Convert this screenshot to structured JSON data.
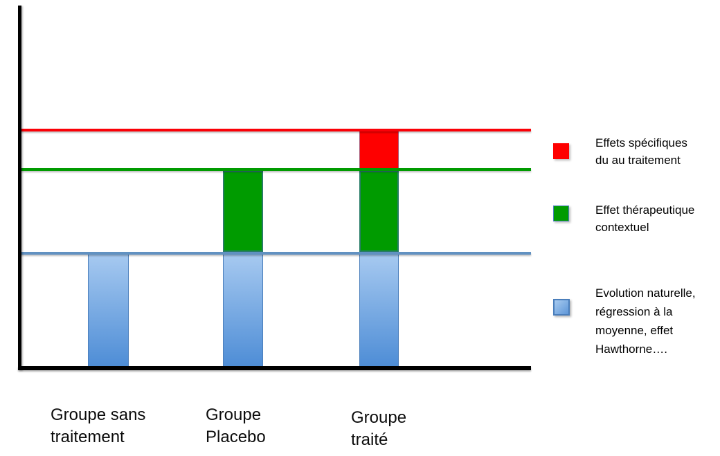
{
  "chart_data": {
    "type": "bar",
    "stacked": true,
    "title": "",
    "xlabel": "",
    "ylabel": "",
    "categories": [
      "Groupe sans traitement",
      "Groupe Placebo",
      "Groupe traité"
    ],
    "series": [
      {
        "name": "Evolution naturelle, régression à la moyenne, effet Hawthorne….",
        "color": "#5f90c0",
        "fill": "gradient #a6c9f0 to #4e8dd6",
        "values": [
          1.0,
          1.0,
          1.0
        ]
      },
      {
        "name": "Effet thérapeutique contextuel",
        "color": "#009b00",
        "values": [
          0,
          0.72,
          0.72
        ]
      },
      {
        "name": "Effets spécifiques du au traitement",
        "color": "#fe0000",
        "values": [
          0,
          0,
          0.33
        ]
      }
    ],
    "reference_lines": [
      {
        "level": 2.05,
        "color": "#fb0007",
        "matches": "sommet barre groupe traité"
      },
      {
        "level": 1.72,
        "color": "#009b00",
        "matches": "sommet barre groupe placebo"
      },
      {
        "level": 1.0,
        "color": "#6191c1",
        "matches": "sommet barre groupe sans traitement"
      }
    ],
    "y_axis": {
      "unit": "relative (ligne bleue = 1)",
      "ticks": "none",
      "ylim": [
        0,
        3.2
      ]
    },
    "x_axis": {
      "ticks": "none"
    },
    "grid": false,
    "legend_position": "right",
    "axis_color": "#000000",
    "background": "#ffffff"
  },
  "x_labels": [
    {
      "line1": "Groupe sans",
      "line2": "traitement"
    },
    {
      "line1": "Groupe",
      "line2": "Placebo"
    },
    {
      "line1": "Groupe",
      "line2": "traité"
    }
  ],
  "legend": {
    "items": [
      {
        "color": "#fe0000",
        "lines": [
          "Effets spécifiques",
          "du au traitement"
        ]
      },
      {
        "color": "#009b00",
        "lines": [
          "Effet thérapeutique",
          "contextuel"
        ]
      },
      {
        "color": "#5f90c0",
        "lines": [
          "Evolution naturelle,",
          "régression à la",
          "moyenne, effet",
          "Hawthorne…."
        ]
      }
    ]
  }
}
